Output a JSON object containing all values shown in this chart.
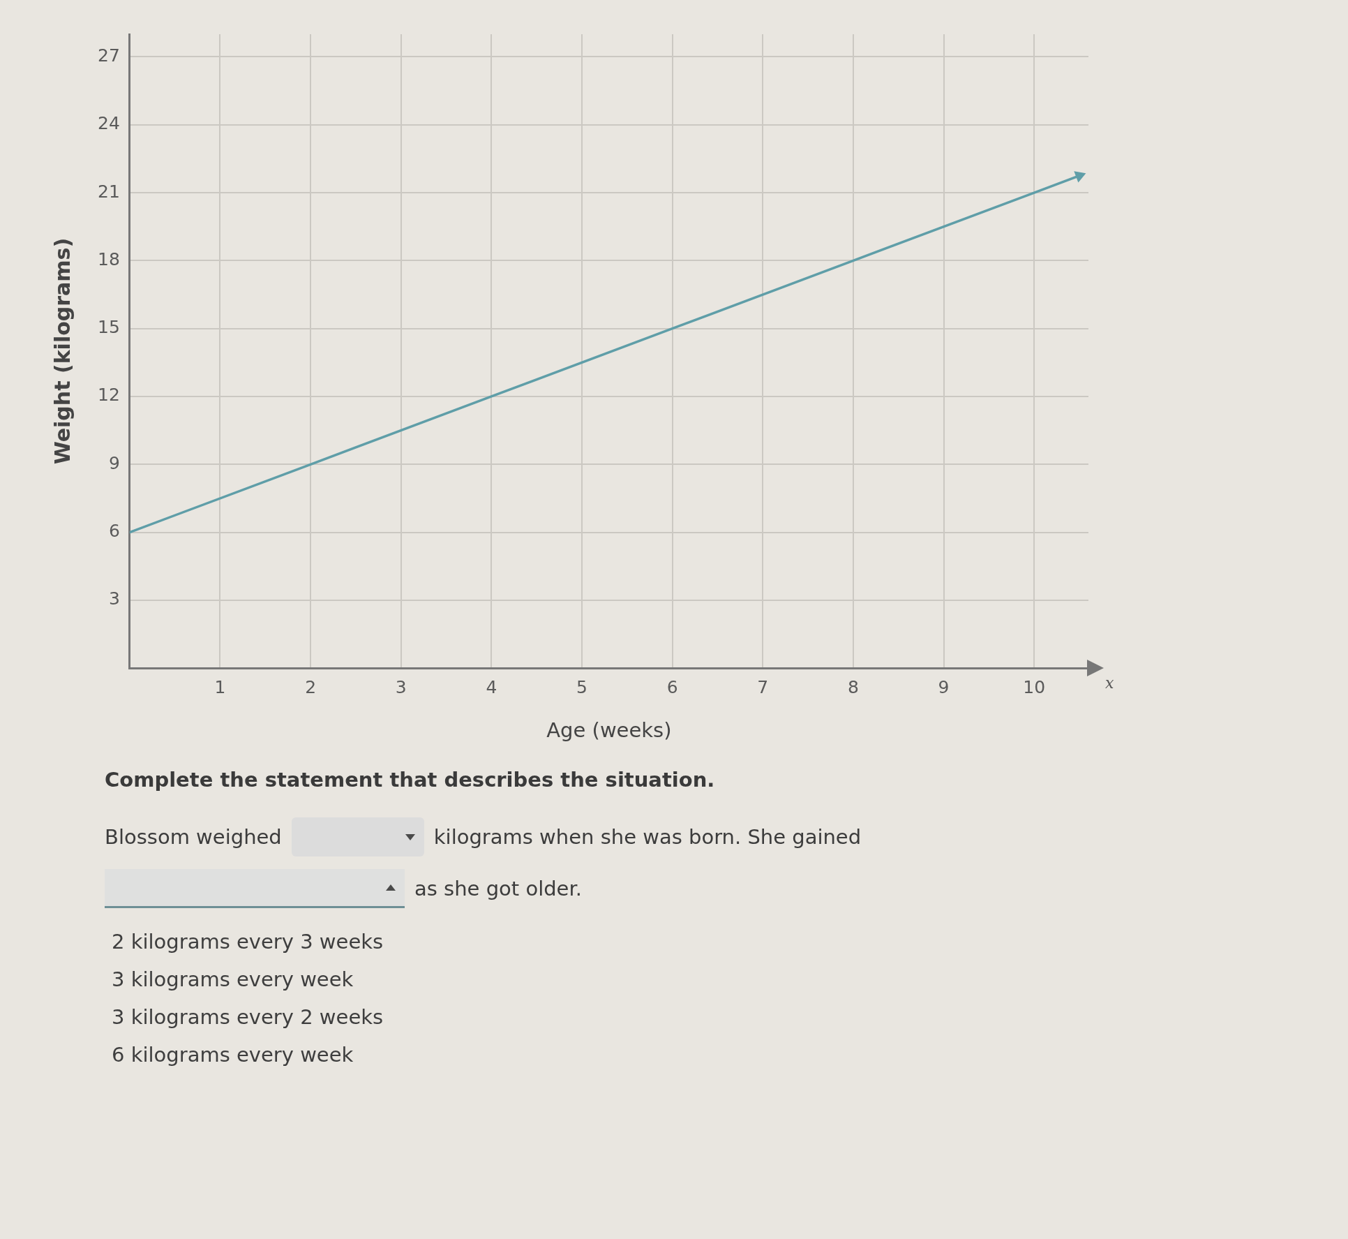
{
  "chart_data": {
    "type": "line",
    "xlabel": "Age (weeks)",
    "ylabel": "Weight (kilograms)",
    "x": [
      0,
      2,
      4,
      6,
      8,
      10,
      10.5
    ],
    "values": [
      6,
      9,
      12,
      15,
      18,
      21,
      21.75
    ],
    "color": "#5f9ea8",
    "xlim": [
      0,
      10.6
    ],
    "ylim": [
      0,
      28
    ],
    "xticks": [
      1,
      2,
      3,
      4,
      5,
      6,
      7,
      8,
      9,
      10
    ],
    "yticks": [
      3,
      6,
      9,
      12,
      15,
      18,
      21,
      24,
      27
    ],
    "grid": true,
    "marker": "none",
    "line_style": "solid",
    "annotations": [
      "x",
      "Complete the statement that describes the situation.",
      "Blossom weighed",
      "kilograms when she was born. She gained",
      "as she got older.",
      "2 kilograms every 3 weeks",
      "3 kilograms every week",
      "3 kilograms every 2 weeks",
      "6 kilograms every week"
    ]
  }
}
